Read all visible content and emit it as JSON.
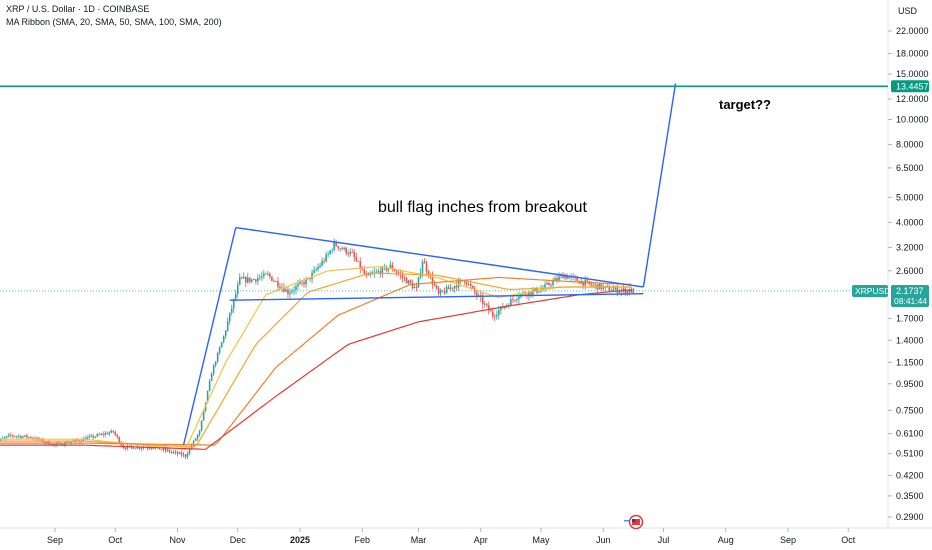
{
  "legend": {
    "symbol_line": "XRP / U.S. Dollar · 1D · COINBASE",
    "indicator_line": "MA Ribbon (SMA, 20, SMA, 50, SMA, 100, SMA, 200)"
  },
  "colors": {
    "up": "#26a69a",
    "down": "#ef5350",
    "trendline": "#2962ff",
    "target_line": "#089981",
    "sma20": "#f5c342",
    "sma50": "#f7a52b",
    "sma100": "#f0822b",
    "sma200": "#e53935",
    "price_badge": "#26a69a",
    "target_badge": "#089981"
  },
  "chart_data": {
    "type": "line",
    "currency_label": "USD",
    "scale": "log",
    "ylim": [
      0.27,
      26
    ],
    "y_ticks": [
      "22.0000",
      "18.0000",
      "15.0000",
      "12.0000",
      "10.0000",
      "8.0000",
      "6.5000",
      "5.0000",
      "4.0000",
      "3.2000",
      "2.6000",
      "1.7000",
      "1.4000",
      "1.1500",
      "0.9500",
      "0.7500",
      "0.6100",
      "0.5100",
      "0.4200",
      "0.3500",
      "0.2900"
    ],
    "x_ticks": [
      "Sep",
      "Oct",
      "Nov",
      "Dec",
      "2025",
      "Feb",
      "Mar",
      "Apr",
      "May",
      "Jun",
      "Jul",
      "Aug",
      "Sep",
      "Oct"
    ],
    "price_label": {
      "symbol": "XRPUSD",
      "value": "2.1737",
      "countdown": "08:41:44"
    },
    "target_label": {
      "value": "13.4457"
    },
    "annotations": [
      "bull flag inches from breakout",
      "target??"
    ],
    "price_path": [
      [
        "2024-08-01",
        0.56
      ],
      [
        "2024-08-10",
        0.6
      ],
      [
        "2024-08-20",
        0.59
      ],
      [
        "2024-09-01",
        0.55
      ],
      [
        "2024-09-15",
        0.58
      ],
      [
        "2024-09-30",
        0.62
      ],
      [
        "2024-10-05",
        0.54
      ],
      [
        "2024-10-20",
        0.54
      ],
      [
        "2024-11-01",
        0.51
      ],
      [
        "2024-11-05",
        0.5
      ],
      [
        "2024-11-12",
        0.62
      ],
      [
        "2024-11-18",
        1.05
      ],
      [
        "2024-11-24",
        1.45
      ],
      [
        "2024-12-02",
        2.4
      ],
      [
        "2024-12-08",
        2.4
      ],
      [
        "2024-12-16",
        2.5
      ],
      [
        "2024-12-26",
        2.15
      ],
      [
        "2025-01-05",
        2.4
      ],
      [
        "2025-01-15",
        3.0
      ],
      [
        "2025-01-18",
        3.3
      ],
      [
        "2025-01-27",
        3.0
      ],
      [
        "2025-02-03",
        2.45
      ],
      [
        "2025-02-15",
        2.7
      ],
      [
        "2025-02-28",
        2.2
      ],
      [
        "2025-03-03",
        2.85
      ],
      [
        "2025-03-11",
        2.1
      ],
      [
        "2025-03-24",
        2.4
      ],
      [
        "2025-04-07",
        1.75
      ],
      [
        "2025-04-20",
        2.1
      ],
      [
        "2025-05-01",
        2.2
      ],
      [
        "2025-05-12",
        2.5
      ],
      [
        "2025-05-25",
        2.3
      ],
      [
        "2025-06-05",
        2.2
      ],
      [
        "2025-06-16",
        2.17
      ]
    ],
    "series": [
      {
        "name": "SMA 20",
        "values": [
          [
            "2024-08-01",
            0.58
          ],
          [
            "2024-09-15",
            0.58
          ],
          [
            "2024-11-05",
            0.53
          ],
          [
            "2024-11-25",
            1.15
          ],
          [
            "2024-12-15",
            2.1
          ],
          [
            "2025-01-15",
            2.6
          ],
          [
            "2025-02-10",
            2.7
          ],
          [
            "2025-03-10",
            2.45
          ],
          [
            "2025-04-10",
            2.05
          ],
          [
            "2025-05-10",
            2.25
          ],
          [
            "2025-06-16",
            2.25
          ]
        ]
      },
      {
        "name": "SMA 50",
        "values": [
          [
            "2024-08-01",
            0.57
          ],
          [
            "2024-09-15",
            0.57
          ],
          [
            "2024-11-10",
            0.54
          ],
          [
            "2024-12-10",
            1.35
          ],
          [
            "2025-01-05",
            2.15
          ],
          [
            "2025-02-05",
            2.55
          ],
          [
            "2025-03-10",
            2.5
          ],
          [
            "2025-04-15",
            2.2
          ],
          [
            "2025-05-15",
            2.25
          ],
          [
            "2025-06-16",
            2.25
          ]
        ]
      },
      {
        "name": "SMA 100",
        "values": [
          [
            "2024-08-01",
            0.56
          ],
          [
            "2024-09-15",
            0.56
          ],
          [
            "2024-11-20",
            0.55
          ],
          [
            "2024-12-20",
            1.1
          ],
          [
            "2025-01-20",
            1.75
          ],
          [
            "2025-02-25",
            2.3
          ],
          [
            "2025-04-10",
            2.45
          ],
          [
            "2025-05-20",
            2.35
          ],
          [
            "2025-06-16",
            2.3
          ]
        ]
      },
      {
        "name": "SMA 200",
        "values": [
          [
            "2024-08-01",
            0.55
          ],
          [
            "2024-09-15",
            0.55
          ],
          [
            "2024-11-15",
            0.53
          ],
          [
            "2024-12-20",
            0.85
          ],
          [
            "2025-01-25",
            1.35
          ],
          [
            "2025-03-01",
            1.65
          ],
          [
            "2025-04-15",
            1.9
          ],
          [
            "2025-05-20",
            2.1
          ],
          [
            "2025-06-16",
            2.2
          ]
        ]
      }
    ],
    "trendlines": [
      {
        "name": "rally-leg",
        "points": [
          [
            "2024-11-04",
            0.55
          ],
          [
            "2024-11-30",
            3.82
          ]
        ]
      },
      {
        "name": "flag-upper",
        "points": [
          [
            "2024-11-30",
            3.82
          ],
          [
            "2025-06-21",
            2.25
          ]
        ]
      },
      {
        "name": "flag-lower",
        "points": [
          [
            "2024-11-27",
            2.0
          ],
          [
            "2025-06-21",
            2.12
          ]
        ]
      },
      {
        "name": "breakout-projection",
        "points": [
          [
            "2025-06-21",
            2.25
          ],
          [
            "2025-07-07",
            13.8
          ]
        ]
      },
      {
        "name": "target-level",
        "points": [
          [
            "2024-08-01",
            13.4457
          ],
          [
            "2025-10-31",
            13.4457
          ]
        ]
      }
    ]
  }
}
